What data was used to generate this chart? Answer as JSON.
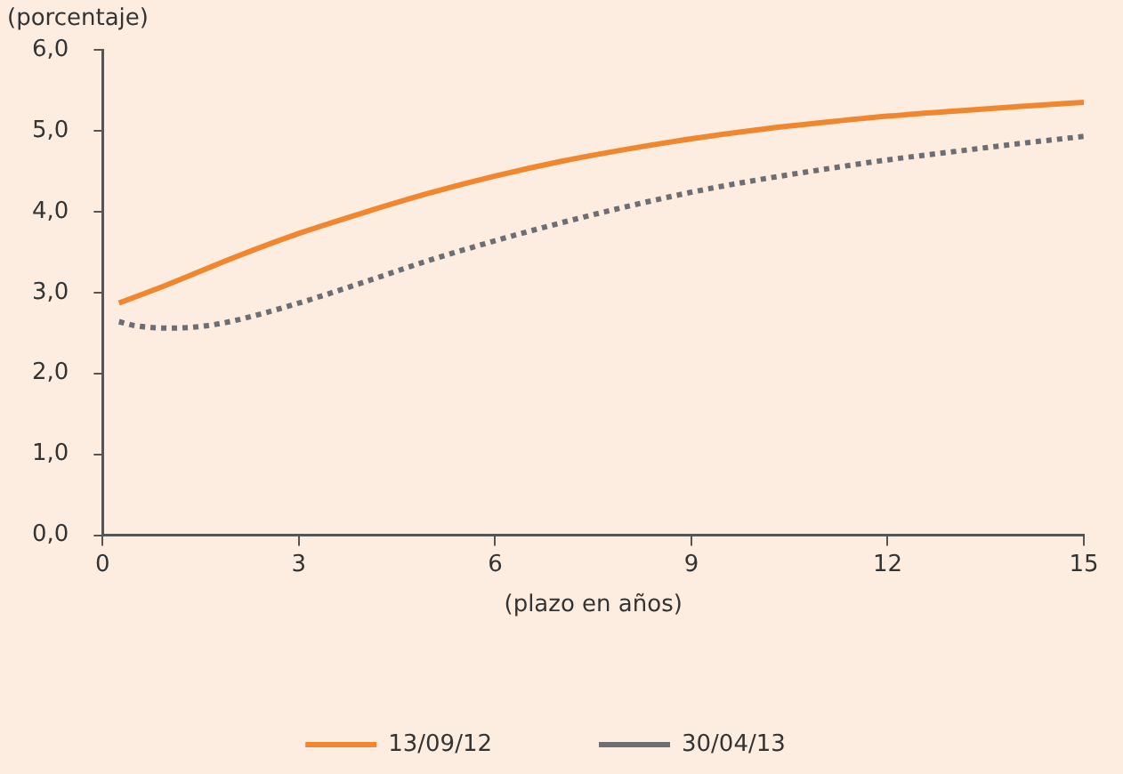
{
  "chart_data": {
    "type": "line",
    "ylabel": "(porcentaje)",
    "xlabel": "(plazo en años)",
    "xlim": [
      0,
      15
    ],
    "xticks": [
      0,
      3,
      6,
      9,
      12,
      15
    ],
    "ylim": [
      0,
      6
    ],
    "yticks": [
      {
        "value": 0,
        "label": "0,0"
      },
      {
        "value": 1,
        "label": "1,0"
      },
      {
        "value": 2,
        "label": "2,0"
      },
      {
        "value": 3,
        "label": "3,0"
      },
      {
        "value": 4,
        "label": "4,0"
      },
      {
        "value": 5,
        "label": "5,0"
      },
      {
        "value": 6,
        "label": "6,0"
      }
    ],
    "grid": false,
    "legend": "bottom",
    "marker": "none",
    "series": [
      {
        "name": "13/09/12",
        "color": "#f0862e",
        "line_style": "solid",
        "x": [
          0.25,
          1,
          2,
          3,
          4,
          5,
          6,
          7,
          8,
          9,
          10,
          11,
          12,
          13,
          14,
          15
        ],
        "values": [
          2.87,
          3.1,
          3.43,
          3.73,
          3.99,
          4.23,
          4.44,
          4.62,
          4.77,
          4.9,
          5.01,
          5.1,
          5.18,
          5.24,
          5.3,
          5.35
        ]
      },
      {
        "name": "30/04/13",
        "color": "#6d6e71",
        "line_style": "dotted",
        "x": [
          0.25,
          0.5,
          1,
          1.5,
          2,
          3,
          4,
          5,
          6,
          7,
          8,
          9,
          10,
          11,
          12,
          13,
          14,
          15
        ],
        "values": [
          2.64,
          2.59,
          2.56,
          2.58,
          2.65,
          2.87,
          3.13,
          3.4,
          3.64,
          3.86,
          4.06,
          4.24,
          4.39,
          4.52,
          4.64,
          4.74,
          4.84,
          4.93
        ]
      }
    ]
  }
}
